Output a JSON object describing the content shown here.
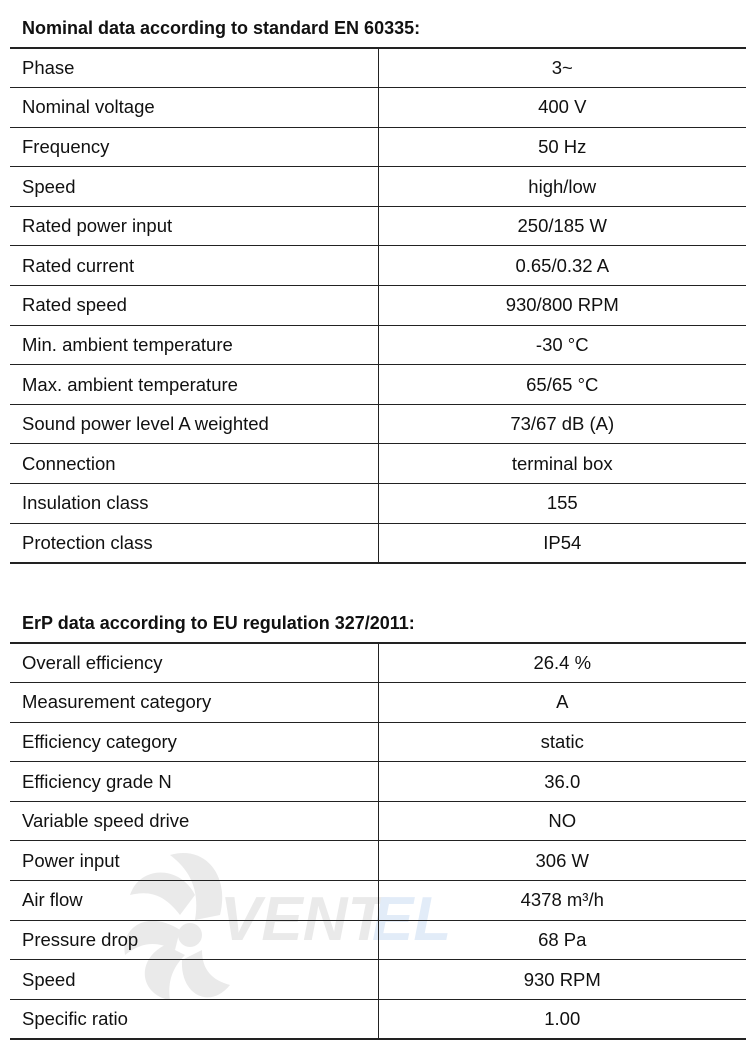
{
  "nominal": {
    "title": "Nominal data according to standard EN 60335:",
    "rows": [
      {
        "label": "Phase",
        "value": "3~"
      },
      {
        "label": "Nominal voltage",
        "value": "400 V"
      },
      {
        "label": "Frequency",
        "value": "50 Hz"
      },
      {
        "label": "Speed",
        "value": "high/low"
      },
      {
        "label": "Rated power input",
        "value": "250/185 W"
      },
      {
        "label": "Rated current",
        "value": "0.65/0.32 A"
      },
      {
        "label": "Rated speed",
        "value": "930/800 RPM"
      },
      {
        "label": "Min. ambient temperature",
        "value": "-30 °C"
      },
      {
        "label": "Max. ambient temperature",
        "value": "65/65 °C"
      },
      {
        "label": "Sound power level A weighted",
        "value": "73/67 dB (A)"
      },
      {
        "label": "Connection",
        "value": "terminal box"
      },
      {
        "label": "Insulation class",
        "value": "155"
      },
      {
        "label": "Protection class",
        "value": "IP54"
      }
    ]
  },
  "erp": {
    "title": "ErP data according to EU regulation 327/2011:",
    "rows": [
      {
        "label": "Overall efficiency",
        "value": "26.4 %"
      },
      {
        "label": "Measurement category",
        "value": "A"
      },
      {
        "label": "Efficiency category",
        "value": "static"
      },
      {
        "label": "Efficiency grade N",
        "value": "36.0"
      },
      {
        "label": "Variable speed drive",
        "value": "NO"
      },
      {
        "label": "Power input",
        "value": "306 W"
      },
      {
        "label": "Air flow",
        "value": "4378 m³/h"
      },
      {
        "label": "Pressure drop",
        "value": "68 Pa"
      },
      {
        "label": "Speed",
        "value": "930 RPM"
      },
      {
        "label": "Specific ratio",
        "value": "1.00"
      }
    ]
  },
  "watermark": {
    "text": "VENTEL",
    "icon": "fan-icon",
    "colors": {
      "gray": "#6e6e6e",
      "blue": "#3a7fd0"
    }
  },
  "colors": {
    "text": "#111111",
    "border": "#222222",
    "background": "#ffffff"
  }
}
